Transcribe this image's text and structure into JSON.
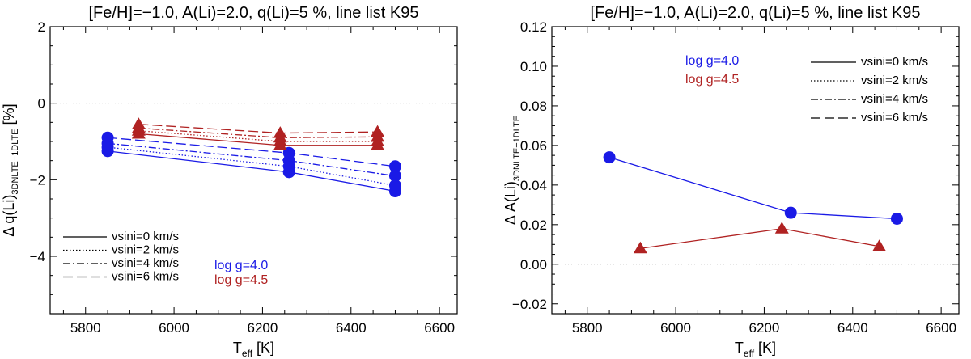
{
  "chart_data": [
    {
      "type": "line",
      "panel": "left",
      "title": "[Fe/H]=−1.0, A(Li)=2.0, q(Li)=5 %, line list K95",
      "xlabel_main": "T",
      "xlabel_sub": "eff",
      "xlabel_unit": " [K]",
      "ylabel_main": "Δ q(Li)",
      "ylabel_sub": "3DNLTE−1DLTE",
      "ylabel_unit": " [%]",
      "xlim": [
        5720,
        6640
      ],
      "ylim": [
        -5.5,
        2.0
      ],
      "xticks": [
        5800,
        6000,
        6200,
        6400,
        6600
      ],
      "yticks": [
        2,
        0,
        -2,
        -4
      ],
      "ytick_labels": [
        "2",
        "0",
        "−2",
        "−4"
      ],
      "zero_line": 0,
      "legend_vsini": [
        "vsini=0  km/s",
        "vsini=2  km/s",
        "vsini=4  km/s",
        "vsini=6  km/s"
      ],
      "legend_logg": [
        "log g=4.0",
        "log g=4.5"
      ],
      "series": [
        {
          "group": "log g=4.0",
          "vsini": 0,
          "x": [
            5850,
            6260,
            6500
          ],
          "y": [
            -1.25,
            -1.8,
            -2.3
          ]
        },
        {
          "group": "log g=4.0",
          "vsini": 2,
          "x": [
            5850,
            6260,
            6500
          ],
          "y": [
            -1.15,
            -1.65,
            -2.15
          ]
        },
        {
          "group": "log g=4.0",
          "vsini": 4,
          "x": [
            5850,
            6260,
            6500
          ],
          "y": [
            -1.05,
            -1.5,
            -1.9
          ]
        },
        {
          "group": "log g=4.0",
          "vsini": 6,
          "x": [
            5850,
            6260,
            6500
          ],
          "y": [
            -0.9,
            -1.3,
            -1.65
          ]
        },
        {
          "group": "log g=4.5",
          "vsini": 0,
          "x": [
            5920,
            6240,
            6460
          ],
          "y": [
            -0.8,
            -1.1,
            -1.1
          ]
        },
        {
          "group": "log g=4.5",
          "vsini": 2,
          "x": [
            5920,
            6240,
            6460
          ],
          "y": [
            -0.72,
            -1.0,
            -1.0
          ]
        },
        {
          "group": "log g=4.5",
          "vsini": 4,
          "x": [
            5920,
            6240,
            6460
          ],
          "y": [
            -0.65,
            -0.9,
            -0.88
          ]
        },
        {
          "group": "log g=4.5",
          "vsini": 6,
          "x": [
            5920,
            6240,
            6460
          ],
          "y": [
            -0.55,
            -0.78,
            -0.75
          ]
        }
      ]
    },
    {
      "type": "line",
      "panel": "right",
      "title": "[Fe/H]=−1.0, A(Li)=2.0, q(Li)=5 %, line list K95",
      "xlabel_main": "T",
      "xlabel_sub": "eff",
      "xlabel_unit": " [K]",
      "ylabel_main": "Δ A(Li)",
      "ylabel_sub": "3DNLTE−1DLTE",
      "ylabel_unit": "",
      "xlim": [
        5720,
        6640
      ],
      "ylim": [
        -0.025,
        0.12
      ],
      "xticks": [
        5800,
        6000,
        6200,
        6400,
        6600
      ],
      "yticks": [
        0.12,
        0.1,
        0.08,
        0.06,
        0.04,
        0.02,
        0.0,
        -0.02
      ],
      "ytick_labels": [
        "0.12",
        "0.10",
        "0.08",
        "0.06",
        "0.04",
        "0.02",
        "0.00",
        "−0.02"
      ],
      "zero_line": 0,
      "legend_vsini": [
        "vsini=0  km/s",
        "vsini=2  km/s",
        "vsini=4  km/s",
        "vsini=6  km/s"
      ],
      "legend_logg": [
        "log g=4.0",
        "log g=4.5"
      ],
      "series": [
        {
          "group": "log g=4.0",
          "vsini": 0,
          "x": [
            5850,
            6260,
            6500
          ],
          "y": [
            0.054,
            0.026,
            0.023
          ]
        },
        {
          "group": "log g=4.5",
          "vsini": 0,
          "x": [
            5920,
            6240,
            6460
          ],
          "y": [
            0.008,
            0.018,
            0.009
          ]
        }
      ]
    }
  ],
  "colors": {
    "logg40": "#1a1ae6",
    "logg45": "#b02222",
    "axis": "#000000",
    "zero_line": "#999999"
  }
}
